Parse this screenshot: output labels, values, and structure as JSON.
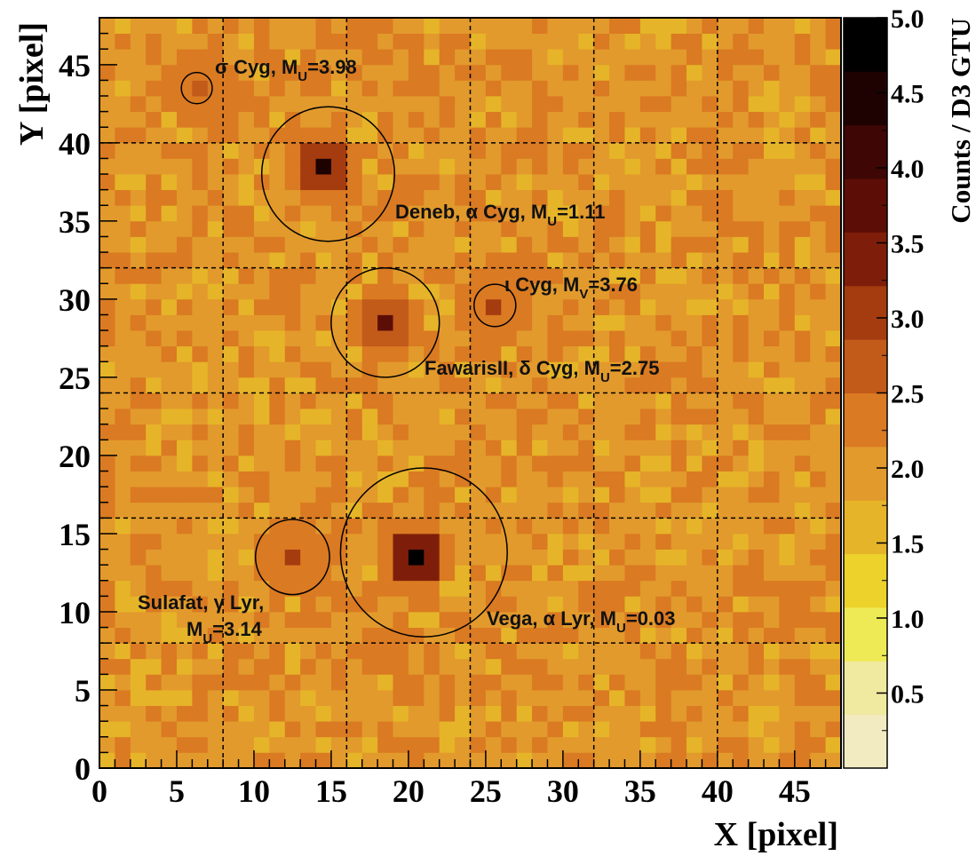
{
  "chart_data": {
    "type": "heatmap",
    "title": "",
    "xlabel": "X [pixel]",
    "ylabel": "Y [pixel]",
    "colorbar_label": "Counts / D3 GTU",
    "xlim": [
      0,
      48
    ],
    "ylim": [
      0,
      48
    ],
    "zlim": [
      0,
      5.0
    ],
    "x_ticks": [
      "0",
      "5",
      "10",
      "15",
      "20",
      "25",
      "30",
      "35",
      "40",
      "45"
    ],
    "y_ticks": [
      "0",
      "5",
      "10",
      "15",
      "20",
      "25",
      "30",
      "35",
      "40",
      "45"
    ],
    "colorbar_ticks": [
      "0.5",
      "1.0",
      "1.5",
      "2.0",
      "2.5",
      "3.0",
      "3.5",
      "4.0",
      "4.5",
      "5.0"
    ],
    "grid": "dashed lines every 8 pixels (EC boundaries)",
    "background_level_range": [
      1.5,
      2.5
    ],
    "hotspots": [
      {
        "x": 14.5,
        "y": 38.5,
        "value": 4.5
      },
      {
        "x": 18.5,
        "y": 28.5,
        "value": 3.8
      },
      {
        "x": 20.5,
        "y": 13.5,
        "value": 5.0
      },
      {
        "x": 12.5,
        "y": 13.5,
        "value": 3.2
      },
      {
        "x": 25.5,
        "y": 29.5,
        "value": 2.9
      },
      {
        "x": 6.5,
        "y": 43.5,
        "value": 2.7
      }
    ],
    "circles": [
      {
        "name": "sigma_cyg",
        "x": 6.3,
        "y": 43.5,
        "r": 1.0
      },
      {
        "name": "deneb",
        "x": 14.8,
        "y": 38.0,
        "r": 4.3
      },
      {
        "name": "iota_cyg",
        "x": 25.6,
        "y": 29.6,
        "r": 1.35
      },
      {
        "name": "fawaris",
        "x": 18.5,
        "y": 28.5,
        "r": 3.5
      },
      {
        "name": "sulafat",
        "x": 12.5,
        "y": 13.5,
        "r": 2.4
      },
      {
        "name": "vega",
        "x": 21.0,
        "y": 13.8,
        "r": 5.4
      }
    ],
    "annotations": {
      "sigma_cyg": {
        "pre": "σ Cyg, M",
        "sub": "U",
        "post": "=3.98"
      },
      "deneb": {
        "pre": "Deneb, α Cyg, M",
        "sub": "U",
        "post": "=1.11"
      },
      "iota_cyg": {
        "pre": "ι Cyg, M",
        "sub": "V",
        "post": "=3.76"
      },
      "fawaris": {
        "pre": "FawarisII, δ Cyg, M",
        "sub": "U",
        "post": "=2.75"
      },
      "sulafat_line1": {
        "text": "Sulafat, γ Lyr,"
      },
      "sulafat_line2": {
        "pre": "M",
        "sub": "U",
        "post": "=3.14"
      },
      "vega": {
        "pre": "Vega, α Lyr, M",
        "sub": "U",
        "post": "=0.03"
      }
    },
    "colors": {
      "scale": [
        "#f2ebc2",
        "#f0e9a0",
        "#eeea55",
        "#ecd22a",
        "#e6b428",
        "#e29a2c",
        "#da7a22",
        "#c25a1a",
        "#a43c10",
        "#7e1e0a",
        "#5c0e06",
        "#3e0604",
        "#1e0202",
        "#000000"
      ]
    }
  }
}
